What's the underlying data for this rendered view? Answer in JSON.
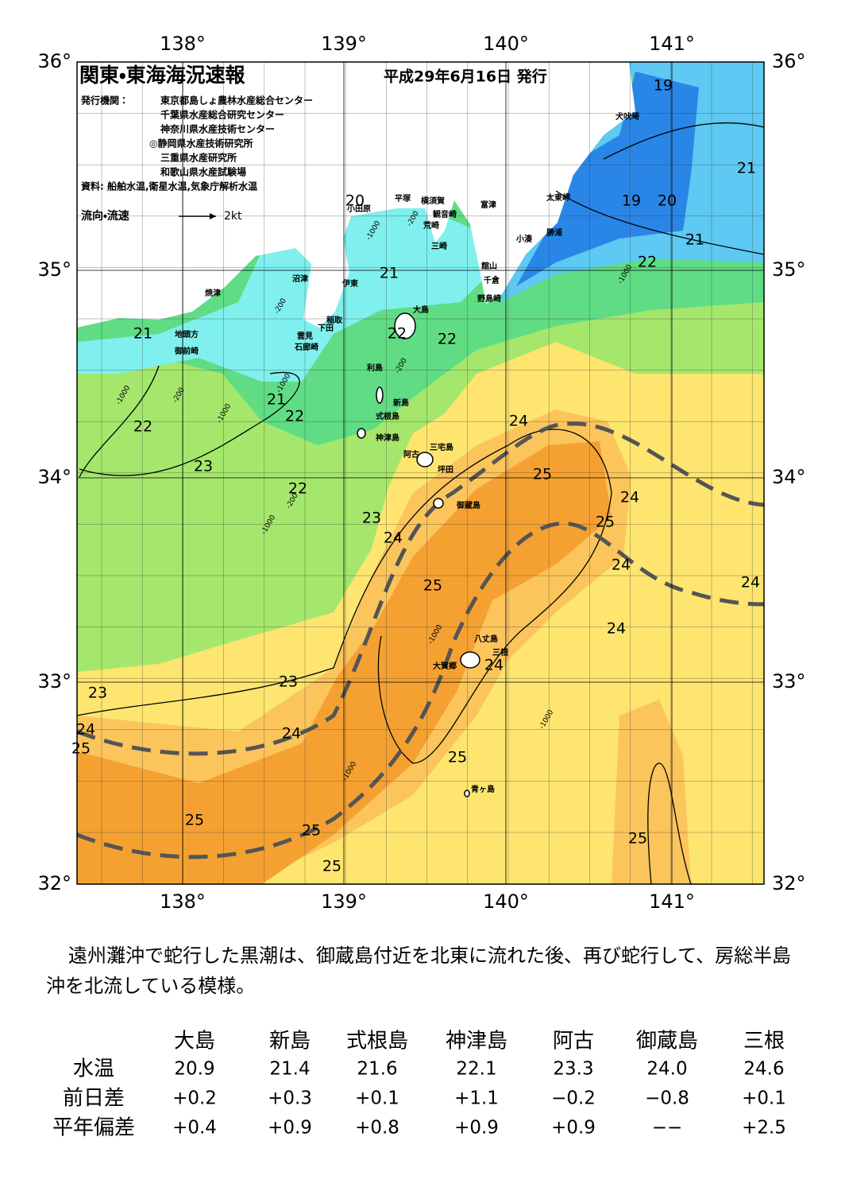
{
  "header": {
    "title": "関東・東海海況速報",
    "date": "平成29年6月16日 発行",
    "issuer_label": "発行機関：",
    "issuers": [
      "東京都島しょ農林水産総合センター",
      "千葉県水産総合研究センター",
      "神奈川県水産技術センター",
      "◎静岡県水産技術研究所",
      "三重県水産研究所",
      "和歌山県水産試験場"
    ],
    "source": "資料: 船舶水温,衛星水温,気象庁解析水温",
    "legend_label": "流向・流速",
    "legend_unit": "2kt"
  },
  "map": {
    "lon_labels": [
      "138°",
      "139°",
      "140°",
      "141°"
    ],
    "lat_labels": [
      "36°",
      "35°",
      "34°",
      "33°",
      "32°"
    ],
    "contour_labels": [
      "19",
      "21",
      "19",
      "20",
      "20",
      "21",
      "22",
      "21",
      "21",
      "22",
      "22",
      "21",
      "22",
      "22",
      "24",
      "23",
      "25",
      "22",
      "24",
      "23",
      "25",
      "24",
      "24",
      "24",
      "25",
      "24",
      "24",
      "23",
      "23",
      "24",
      "25",
      "24",
      "25",
      "25",
      "25",
      "25",
      "25"
    ],
    "depth_labels": [
      "-200",
      "-1000",
      "-200",
      "-1000",
      "-200",
      "-1000",
      "-200",
      "-1000",
      "-1000",
      "-200",
      "-1000",
      "-1000",
      "-1000",
      "-1000"
    ],
    "places": [
      "犬吠埼",
      "太東岬",
      "勝浦",
      "小湊",
      "富津",
      "横須賀",
      "観音崎",
      "平塚",
      "小田原",
      "荒崎",
      "三崎",
      "館山",
      "千倉",
      "野島崎",
      "沼津",
      "伊東",
      "焼津",
      "稲取",
      "下田",
      "大島",
      "雲見",
      "石廊崎",
      "地頭方",
      "御前崎",
      "利島",
      "新島",
      "式根島",
      "神津島",
      "三宅島",
      "阿古",
      "坪田",
      "御蔵島",
      "八丈島",
      "三根",
      "大賀郷",
      "青ヶ島"
    ]
  },
  "summary": "遠州灘沖で蛇行した黒潮は、御蔵島付近を北東に流れた後、再び蛇行して、房総半島沖を北流している模様。",
  "table": {
    "columns": [
      "大島",
      "新島",
      "式根島",
      "神津島",
      "阿古",
      "御蔵島",
      "三根"
    ],
    "rows": [
      {
        "label": "水温",
        "values": [
          "20.9",
          "21.4",
          "21.6",
          "22.1",
          "23.3",
          "24.0",
          "24.6"
        ]
      },
      {
        "label": "前日差",
        "values": [
          "+0.2",
          "+0.3",
          "+0.1",
          "+1.1",
          "−0.2",
          "−0.8",
          "+0.1"
        ]
      },
      {
        "label": "平年偏差",
        "values": [
          "+0.4",
          "+0.9",
          "+0.8",
          "+0.9",
          "+0.9",
          "−−",
          "+2.5"
        ]
      }
    ]
  }
}
